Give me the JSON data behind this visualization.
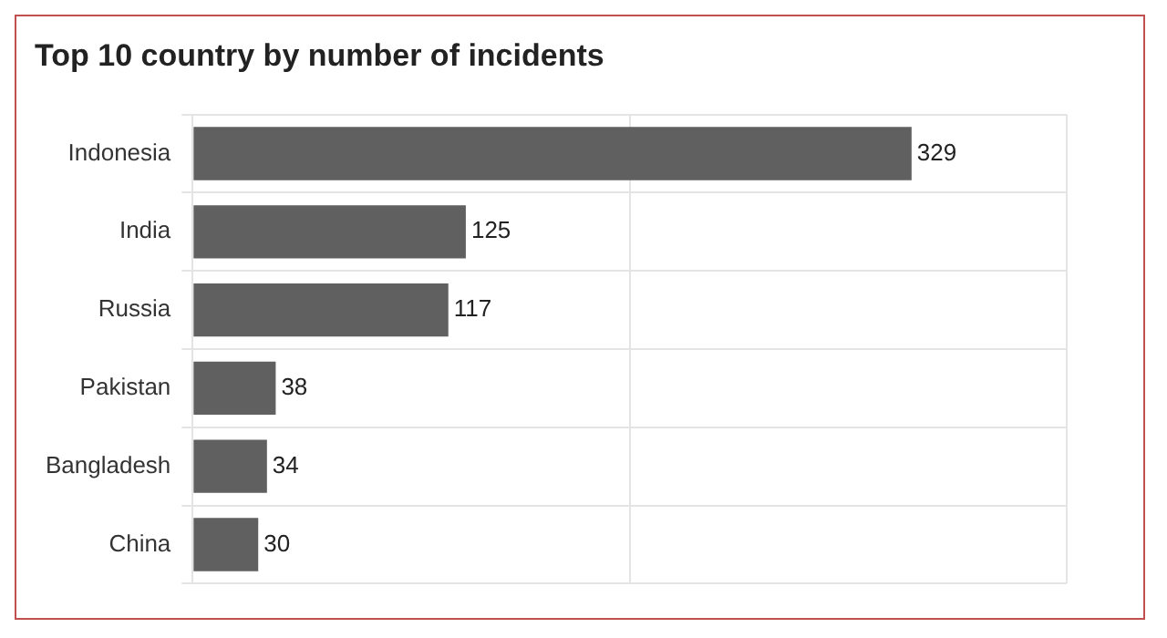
{
  "chart_data": {
    "type": "bar",
    "orientation": "horizontal",
    "title": "Top 10 country by number of incidents",
    "categories": [
      "Indonesia",
      "India",
      "Russia",
      "Pakistan",
      "Bangladesh",
      "China"
    ],
    "values": [
      329,
      125,
      117,
      38,
      34,
      30
    ],
    "color": "#606060",
    "xlim": [
      0,
      400
    ],
    "xticks": [
      {
        "value": 0,
        "label": null
      },
      {
        "value": 200,
        "label": null
      },
      {
        "value": 400,
        "label": null
      }
    ],
    "tick_labels": "y",
    "grid": true,
    "data_labels": true,
    "legend": false
  }
}
